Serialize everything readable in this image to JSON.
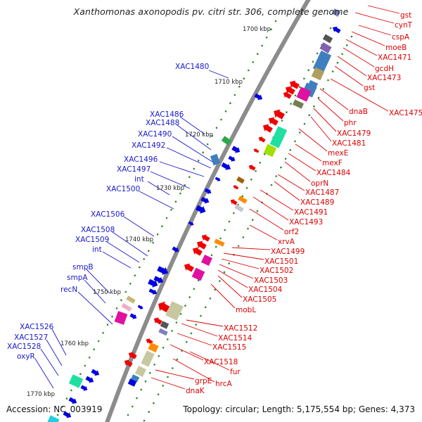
{
  "header": {
    "title": "Xanthomonas axonopodis pv. citri str. 306, complete genome"
  },
  "footer": {
    "accession": "Accession: NC_003919",
    "topology": "Topology: circular; Length: 5,175,554 bp; Genes: 4,373"
  },
  "colors": {
    "backbone": "#8c8c8c",
    "forward_label": "#1818cc",
    "reverse_label": "#dd0000",
    "forward_gene": "#0000e0",
    "reverse_gene": "#ee0000",
    "tick_dot": "#2e8b2e"
  },
  "scale_labels": [
    "1700 kbp",
    "1710 kbp",
    "1720 kbp",
    "1730 kbp",
    "1740 kbp",
    "1750 kbp",
    "1760 kbp",
    "1770 kbp"
  ],
  "forward_labels": [
    "XAC1480",
    "XAC1486",
    "XAC1488",
    "XAC1490",
    "XAC1492",
    "XAC1496",
    "XAC1497",
    "int",
    "XAC1500",
    "XAC1506",
    "XAC1508",
    "XAC1509",
    "int",
    "smpB",
    "smpA",
    "recN",
    "XAC1526",
    "XAC1527",
    "XAC1528",
    "oxyR"
  ],
  "reverse_labels": [
    "gst",
    "cynT",
    "cspA",
    "moeB",
    "XAC1471",
    "gcdH",
    "XAC1473",
    "gst",
    "XAC1475",
    "dnaB",
    "phr",
    "XAC1479",
    "XAC1481",
    "mexE",
    "mexF",
    "XAC1484",
    "oprN",
    "XAC1487",
    "XAC1489",
    "XAC1491",
    "XAC1493",
    "orf2",
    "xrvA",
    "XAC1499",
    "XAC1501",
    "XAC1502",
    "XAC1503",
    "XAC1504",
    "XAC1505",
    "mobL",
    "XAC1512",
    "XAC1514",
    "XAC1515",
    "XAC1518",
    "fur",
    "hrcA",
    "grpE",
    "dnaK"
  ]
}
